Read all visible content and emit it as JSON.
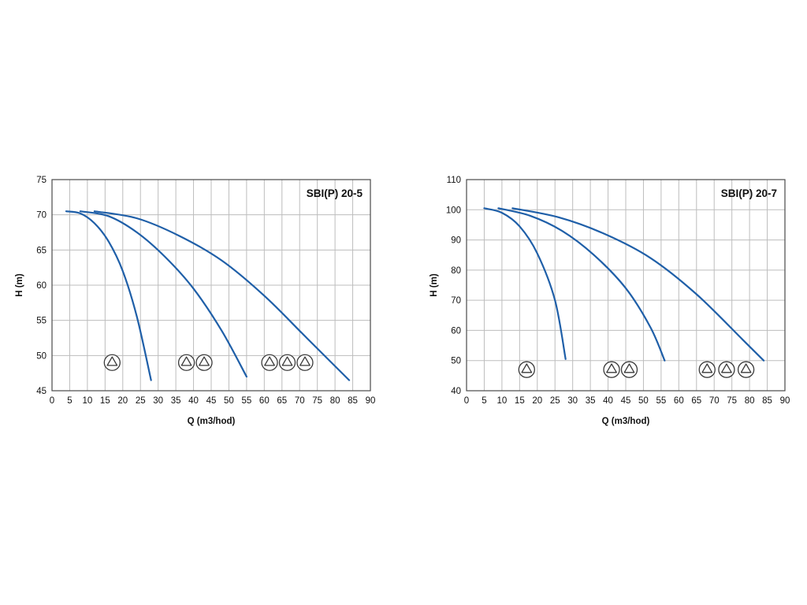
{
  "page": {
    "background": "#ffffff"
  },
  "chart_data": [
    {
      "type": "line",
      "title": "SBI(P) 20-5",
      "xlabel": "Q (m3/hod)",
      "ylabel": "H (m)",
      "xlim": [
        0,
        90
      ],
      "ylim": [
        45,
        75
      ],
      "xticks": [
        0,
        5,
        10,
        15,
        20,
        25,
        30,
        35,
        40,
        45,
        50,
        55,
        60,
        65,
        70,
        75,
        80,
        85,
        90
      ],
      "yticks": [
        45,
        50,
        55,
        60,
        65,
        70,
        75
      ],
      "grid": true,
      "legend_position": "none",
      "curve_color": "#1f5fa8",
      "series": [
        {
          "name": "1 pump",
          "points": [
            [
              4,
              70.5
            ],
            [
              8,
              70.2
            ],
            [
              12,
              68.8
            ],
            [
              16,
              66.2
            ],
            [
              20,
              62.0
            ],
            [
              24,
              55.5
            ],
            [
              28,
              46.5
            ]
          ]
        },
        {
          "name": "2 pumps",
          "points": [
            [
              8,
              70.5
            ],
            [
              16,
              69.8
            ],
            [
              24,
              67.5
            ],
            [
              32,
              64.0
            ],
            [
              40,
              59.5
            ],
            [
              48,
              53.5
            ],
            [
              55,
              47.0
            ]
          ]
        },
        {
          "name": "3 pumps",
          "points": [
            [
              12,
              70.5
            ],
            [
              24,
              69.5
            ],
            [
              36,
              67.0
            ],
            [
              48,
              63.5
            ],
            [
              60,
              58.5
            ],
            [
              72,
              52.5
            ],
            [
              84,
              46.5
            ]
          ]
        }
      ],
      "pump_symbols": [
        {
          "x": 17,
          "y": 49
        },
        {
          "x": 38,
          "y": 49
        },
        {
          "x": 43,
          "y": 49
        },
        {
          "x": 61.5,
          "y": 49
        },
        {
          "x": 66.5,
          "y": 49
        },
        {
          "x": 71.5,
          "y": 49
        }
      ]
    },
    {
      "type": "line",
      "title": "SBI(P) 20-7",
      "xlabel": "Q (m3/hod)",
      "ylabel": "H (m)",
      "xlim": [
        0,
        90
      ],
      "ylim": [
        40,
        110
      ],
      "xticks": [
        0,
        5,
        10,
        15,
        20,
        25,
        30,
        35,
        40,
        45,
        50,
        55,
        60,
        65,
        70,
        75,
        80,
        85,
        90
      ],
      "yticks": [
        40,
        50,
        60,
        70,
        80,
        90,
        100,
        110
      ],
      "grid": true,
      "legend_position": "none",
      "curve_color": "#1f5fa8",
      "series": [
        {
          "name": "1 pump",
          "points": [
            [
              5,
              100.5
            ],
            [
              10,
              99.0
            ],
            [
              15,
              94.5
            ],
            [
              20,
              85.5
            ],
            [
              25,
              70.0
            ],
            [
              28,
              50.5
            ]
          ]
        },
        {
          "name": "2 pumps",
          "points": [
            [
              9,
              100.5
            ],
            [
              18,
              98.0
            ],
            [
              27,
              93.0
            ],
            [
              36,
              85.0
            ],
            [
              45,
              74.0
            ],
            [
              52,
              61.0
            ],
            [
              56,
              50.0
            ]
          ]
        },
        {
          "name": "3 pumps",
          "points": [
            [
              13,
              100.5
            ],
            [
              26,
              97.5
            ],
            [
              39,
              92.0
            ],
            [
              52,
              84.0
            ],
            [
              65,
              72.0
            ],
            [
              78,
              57.0
            ],
            [
              84,
              50.0
            ]
          ]
        }
      ],
      "pump_symbols": [
        {
          "x": 17,
          "y": 47
        },
        {
          "x": 41,
          "y": 47
        },
        {
          "x": 46,
          "y": 47
        },
        {
          "x": 68,
          "y": 47
        },
        {
          "x": 73.5,
          "y": 47
        },
        {
          "x": 79,
          "y": 47
        }
      ]
    }
  ]
}
